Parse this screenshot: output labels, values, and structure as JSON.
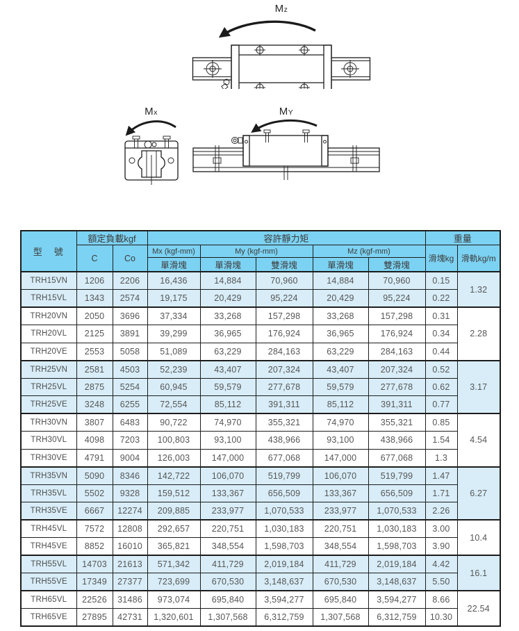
{
  "colors": {
    "header_blue": "#7cd2f2",
    "row_blue": "#d8edf8",
    "row_white": "#ffffff",
    "border": "#1c1c1c",
    "line_art": "#1b1b1b"
  },
  "diagrams": {
    "mz": {
      "base": "M",
      "sub": "z"
    },
    "mx": {
      "base": "M",
      "sub": "x"
    },
    "my": {
      "base": "M",
      "sub": "Y"
    }
  },
  "table": {
    "headers": {
      "model": "型　號",
      "rated_load": "額定負載kgf",
      "c": "C",
      "co": "Co",
      "static_moment": "容許靜力矩",
      "mx": "Mx (kgf-mm)",
      "my": "My (kgf-mm)",
      "mz": "Mz (kgf-mm)",
      "single_block": "單滑塊",
      "double_block": "雙滑塊",
      "weight": "重量",
      "block_weight": "滑塊kg",
      "rail_weight": "滑軌kg/m"
    },
    "groups": [
      {
        "rail_weight": "1.32",
        "shaded": true,
        "rows": [
          {
            "model": "TRH15VN",
            "c": "1206",
            "co": "2206",
            "mx": "16,436",
            "my1": "14,884",
            "my2": "70,960",
            "mz1": "14,884",
            "mz2": "70,960",
            "block_kg": "0.15"
          },
          {
            "model": "TRH15VL",
            "c": "1343",
            "co": "2574",
            "mx": "19,175",
            "my1": "20,429",
            "my2": "95,224",
            "mz1": "20,429",
            "mz2": "95,224",
            "block_kg": "0.22"
          }
        ]
      },
      {
        "rail_weight": "2.28",
        "shaded": false,
        "rows": [
          {
            "model": "TRH20VN",
            "c": "2050",
            "co": "3696",
            "mx": "37,334",
            "my1": "33,268",
            "my2": "157,298",
            "mz1": "33,268",
            "mz2": "157,298",
            "block_kg": "0.31"
          },
          {
            "model": "TRH20VL",
            "c": "2125",
            "co": "3891",
            "mx": "39,299",
            "my1": "36,965",
            "my2": "176,924",
            "mz1": "36,965",
            "mz2": "176,924",
            "block_kg": "0.34"
          },
          {
            "model": "TRH20VE",
            "c": "2553",
            "co": "5058",
            "mx": "51,089",
            "my1": "63,229",
            "my2": "284,163",
            "mz1": "63,229",
            "mz2": "284,163",
            "block_kg": "0.44"
          }
        ]
      },
      {
        "rail_weight": "3.17",
        "shaded": true,
        "rows": [
          {
            "model": "TRH25VN",
            "c": "2581",
            "co": "4503",
            "mx": "52,239",
            "my1": "43,407",
            "my2": "207,324",
            "mz1": "43,407",
            "mz2": "207,324",
            "block_kg": "0.52"
          },
          {
            "model": "TRH25VL",
            "c": "2875",
            "co": "5254",
            "mx": "60,945",
            "my1": "59,579",
            "my2": "277,678",
            "mz1": "59,579",
            "mz2": "277,678",
            "block_kg": "0.62"
          },
          {
            "model": "TRH25VE",
            "c": "3248",
            "co": "6255",
            "mx": "72,554",
            "my1": "85,112",
            "my2": "391,311",
            "mz1": "85,112",
            "mz2": "391,311",
            "block_kg": "0.77"
          }
        ]
      },
      {
        "rail_weight": "4.54",
        "shaded": false,
        "rows": [
          {
            "model": "TRH30VN",
            "c": "3807",
            "co": "6483",
            "mx": "90,722",
            "my1": "74,970",
            "my2": "355,321",
            "mz1": "74,970",
            "mz2": "355,321",
            "block_kg": "0.85"
          },
          {
            "model": "TRH30VL",
            "c": "4098",
            "co": "7203",
            "mx": "100,803",
            "my1": "93,100",
            "my2": "438,966",
            "mz1": "93,100",
            "mz2": "438,966",
            "block_kg": "1.54"
          },
          {
            "model": "TRH30VE",
            "c": "4791",
            "co": "9004",
            "mx": "126,003",
            "my1": "147,000",
            "my2": "677,068",
            "mz1": "147,000",
            "mz2": "677,068",
            "block_kg": "1.3"
          }
        ]
      },
      {
        "rail_weight": "6.27",
        "shaded": true,
        "rows": [
          {
            "model": "TRH35VN",
            "c": "5090",
            "co": "8346",
            "mx": "142,722",
            "my1": "106,070",
            "my2": "519,799",
            "mz1": "106,070",
            "mz2": "519,799",
            "block_kg": "1.47"
          },
          {
            "model": "TRH35VL",
            "c": "5502",
            "co": "9328",
            "mx": "159,512",
            "my1": "133,367",
            "my2": "656,509",
            "mz1": "133,367",
            "mz2": "656,509",
            "block_kg": "1.71"
          },
          {
            "model": "TRH35VE",
            "c": "6667",
            "co": "12274",
            "mx": "209,885",
            "my1": "233,977",
            "my2": "1,070,533",
            "mz1": "233,977",
            "mz2": "1,070,533",
            "block_kg": "2.26"
          }
        ]
      },
      {
        "rail_weight": "10.4",
        "shaded": false,
        "rows": [
          {
            "model": "TRH45VL",
            "c": "7572",
            "co": "12808",
            "mx": "292,657",
            "my1": "220,751",
            "my2": "1,030,183",
            "mz1": "220,751",
            "mz2": "1,030,183",
            "block_kg": "3.00"
          },
          {
            "model": "TRH45VE",
            "c": "8852",
            "co": "16010",
            "mx": "365,821",
            "my1": "348,554",
            "my2": "1,598,703",
            "mz1": "348,554",
            "mz2": "1,598,703",
            "block_kg": "3.90"
          }
        ]
      },
      {
        "rail_weight": "16.1",
        "shaded": true,
        "rows": [
          {
            "model": "TRH55VL",
            "c": "14703",
            "co": "21613",
            "mx": "571,342",
            "my1": "411,729",
            "my2": "2,019,184",
            "mz1": "411,729",
            "mz2": "2,019,184",
            "block_kg": "4.42"
          },
          {
            "model": "TRH55VE",
            "c": "17349",
            "co": "27377",
            "mx": "723,699",
            "my1": "670,530",
            "my2": "3,148,637",
            "mz1": "670,530",
            "mz2": "3,148,637",
            "block_kg": "5.50"
          }
        ]
      },
      {
        "rail_weight": "22.54",
        "shaded": false,
        "rows": [
          {
            "model": "TRH65VL",
            "c": "22526",
            "co": "31486",
            "mx": "973,074",
            "my1": "695,840",
            "my2": "3,594,277",
            "mz1": "695,840",
            "mz2": "3,594,277",
            "block_kg": "8.66"
          },
          {
            "model": "TRH65VE",
            "c": "27895",
            "co": "42731",
            "mx": "1,320,601",
            "my1": "1,307,568",
            "my2": "6,312,759",
            "mz1": "1,307,568",
            "mz2": "6,312,759",
            "block_kg": "10.30"
          }
        ]
      }
    ]
  }
}
